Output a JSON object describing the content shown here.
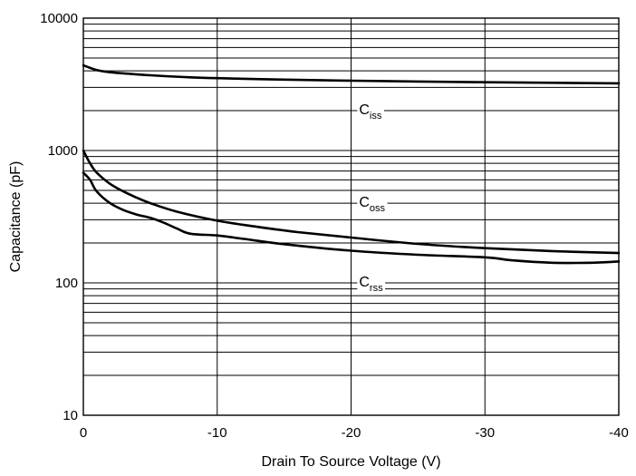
{
  "chart_data": {
    "type": "line",
    "title": "",
    "xlabel": "Drain To Source Voltage (V)",
    "ylabel": "Capacitance (pF)",
    "x_scale": "linear",
    "y_scale": "log",
    "xlim": [
      0,
      -40
    ],
    "ylim": [
      10,
      10000
    ],
    "x_ticks": [
      0,
      -10,
      -20,
      -30,
      -40
    ],
    "x_tick_labels": [
      "0",
      "-10",
      "-20",
      "-30",
      "-40"
    ],
    "y_ticks": [
      10,
      100,
      1000,
      10000
    ],
    "y_tick_labels": [
      "10",
      "100",
      "1000",
      "10000"
    ],
    "grid": true,
    "legend": "none",
    "line_color": "#000000",
    "series": [
      {
        "name": "Ciss",
        "label_main": "C",
        "label_sub": "iss",
        "x": [
          0,
          -1,
          -2,
          -3,
          -5,
          -8,
          -10,
          -15,
          -20,
          -25,
          -30,
          -35,
          -40
        ],
        "values": [
          4400,
          4050,
          3900,
          3830,
          3700,
          3570,
          3520,
          3430,
          3370,
          3320,
          3280,
          3250,
          3220
        ]
      },
      {
        "name": "Coss",
        "label_main": "C",
        "label_sub": "oss",
        "x": [
          0,
          -0.5,
          -1,
          -2,
          -3,
          -4,
          -5,
          -7,
          -10,
          -13,
          -16,
          -20,
          -25,
          -30,
          -35,
          -40
        ],
        "values": [
          1000,
          800,
          680,
          560,
          490,
          440,
          400,
          345,
          295,
          265,
          242,
          220,
          197,
          183,
          174,
          168
        ]
      },
      {
        "name": "Crss",
        "label_main": "C",
        "label_sub": "rss",
        "x": [
          0,
          -0.5,
          -1,
          -2,
          -3,
          -4,
          -5,
          -6,
          -7,
          -8,
          -10,
          -12,
          -15,
          -20,
          -25,
          -30,
          -32,
          -35,
          -38,
          -40
        ],
        "values": [
          680,
          600,
          490,
          400,
          355,
          328,
          310,
          285,
          257,
          235,
          228,
          215,
          196,
          175,
          163,
          156,
          148,
          142,
          142,
          145
        ]
      }
    ]
  }
}
